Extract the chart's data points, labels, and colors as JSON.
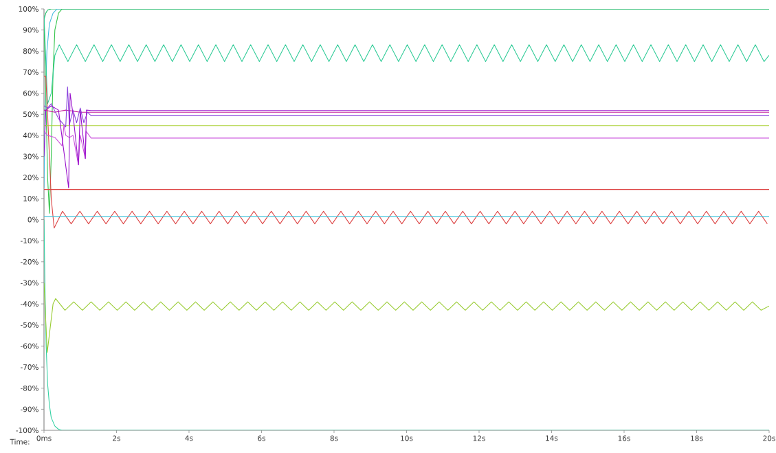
{
  "chart_data": {
    "type": "line",
    "xlabel": "Time:",
    "xlim": [
      0,
      20
    ],
    "ylim": [
      -100,
      100
    ],
    "xticks": [
      {
        "value": 0,
        "label": "0ms"
      },
      {
        "value": 2,
        "label": "2s"
      },
      {
        "value": 4,
        "label": "4s"
      },
      {
        "value": 6,
        "label": "6s"
      },
      {
        "value": 8,
        "label": "8s"
      },
      {
        "value": 10,
        "label": "10s"
      },
      {
        "value": 12,
        "label": "12s"
      },
      {
        "value": 14,
        "label": "14s"
      },
      {
        "value": 16,
        "label": "16s"
      },
      {
        "value": 18,
        "label": "18s"
      },
      {
        "value": 20,
        "label": "20s"
      }
    ],
    "yticks": [
      {
        "value": -100,
        "label": "-100%"
      },
      {
        "value": -90,
        "label": "-90%"
      },
      {
        "value": -80,
        "label": "-80%"
      },
      {
        "value": -70,
        "label": "-70%"
      },
      {
        "value": -60,
        "label": "-60%"
      },
      {
        "value": -50,
        "label": "-50%"
      },
      {
        "value": -40,
        "label": "-40%"
      },
      {
        "value": -30,
        "label": "-30%"
      },
      {
        "value": -20,
        "label": "-20%"
      },
      {
        "value": -10,
        "label": "-10%"
      },
      {
        "value": 0,
        "label": "0%"
      },
      {
        "value": 10,
        "label": "10%"
      },
      {
        "value": 20,
        "label": "20%"
      },
      {
        "value": 30,
        "label": "30%"
      },
      {
        "value": 40,
        "label": "40%"
      },
      {
        "value": 50,
        "label": "50%"
      },
      {
        "value": 60,
        "label": "60%"
      },
      {
        "value": 70,
        "label": "70%"
      },
      {
        "value": 80,
        "label": "80%"
      },
      {
        "value": 90,
        "label": "90%"
      },
      {
        "value": 100,
        "label": "100%"
      }
    ],
    "series": [
      {
        "color": "#33d1a3",
        "x": [
          0,
          0.03,
          0.06,
          0.1,
          0.15,
          0.2,
          0.3,
          0.4,
          0.5,
          20
        ],
        "values": [
          0,
          -35,
          -60,
          -78,
          -88,
          -94,
          -98,
          -99.5,
          -100,
          -100
        ]
      },
      {
        "color": "#22bb66",
        "x": [
          0,
          0.05,
          0.1,
          0.2,
          20
        ],
        "values": [
          95,
          98,
          99.5,
          100,
          100
        ]
      },
      {
        "color": "#44bbe0",
        "x": [
          0,
          0.03,
          0.08,
          0.15,
          0.25,
          0.36,
          20
        ],
        "values": [
          15,
          50,
          80,
          93,
          98,
          100,
          100
        ]
      },
      {
        "color": "#33c44a",
        "x": [
          0,
          0.05,
          0.1,
          0.15,
          0.2,
          0.25,
          0.3,
          0.4,
          0.5,
          20
        ],
        "values": [
          95,
          60,
          20,
          3,
          30,
          70,
          90,
          98,
          100,
          100
        ]
      },
      {
        "color": "#33cc99",
        "x": [
          0,
          0.1,
          0.2,
          0.3,
          0.42,
          0.66,
          0.9,
          1.14,
          1.38,
          1.62,
          1.86,
          2.1,
          2.34,
          2.58,
          2.82,
          3.06,
          3.3,
          3.54,
          3.78,
          4.02,
          4.26,
          4.5,
          4.74,
          4.98,
          5.22,
          5.46,
          5.7,
          5.94,
          6.18,
          6.42,
          6.66,
          6.9,
          7.14,
          7.38,
          7.62,
          7.86,
          8.1,
          8.34,
          8.58,
          8.82,
          9.06,
          9.3,
          9.54,
          9.78,
          10.02,
          10.26,
          10.5,
          10.74,
          10.98,
          11.22,
          11.46,
          11.7,
          11.94,
          12.18,
          12.42,
          12.66,
          12.9,
          13.14,
          13.38,
          13.62,
          13.86,
          14.1,
          14.34,
          14.58,
          14.82,
          15.06,
          15.3,
          15.54,
          15.78,
          16.02,
          16.26,
          16.5,
          16.74,
          16.98,
          17.22,
          17.46,
          17.7,
          17.94,
          18.18,
          18.42,
          18.66,
          18.9,
          19.14,
          19.38,
          19.62,
          19.86,
          20
        ],
        "values": [
          97,
          55,
          60,
          78,
          83,
          75,
          83,
          75,
          83,
          75,
          83,
          75,
          83,
          75,
          83,
          75,
          83,
          75,
          83,
          75,
          83,
          75,
          83,
          75,
          83,
          75,
          83,
          75,
          83,
          75,
          83,
          75,
          83,
          75,
          83,
          75,
          83,
          75,
          83,
          75,
          83,
          75,
          83,
          75,
          83,
          75,
          83,
          75,
          83,
          75,
          83,
          75,
          83,
          75,
          83,
          75,
          83,
          75,
          83,
          75,
          83,
          75,
          83,
          75,
          83,
          75,
          83,
          75,
          83,
          75,
          83,
          75,
          83,
          75,
          83,
          75,
          83,
          75,
          83,
          75,
          83,
          75,
          83,
          75,
          83,
          75,
          78
        ]
      },
      {
        "color": "#dd4444",
        "x": [
          0,
          20
        ],
        "values": [
          14.3,
          14.3
        ]
      },
      {
        "color": "#dd4444",
        "x": [
          0,
          0.05,
          0.1,
          0.2,
          0.28,
          0.51,
          0.75,
          0.99,
          1.23,
          1.47,
          1.71,
          1.95,
          2.19,
          2.43,
          2.67,
          2.91,
          3.15,
          3.39,
          3.63,
          3.87,
          4.11,
          4.35,
          4.59,
          4.83,
          5.07,
          5.31,
          5.55,
          5.79,
          6.03,
          6.27,
          6.51,
          6.75,
          6.99,
          7.23,
          7.47,
          7.71,
          7.95,
          8.19,
          8.43,
          8.67,
          8.91,
          9.15,
          9.39,
          9.63,
          9.87,
          10.11,
          10.35,
          10.59,
          10.83,
          11.07,
          11.31,
          11.55,
          11.79,
          12.03,
          12.27,
          12.51,
          12.75,
          12.99,
          13.23,
          13.47,
          13.71,
          13.95,
          14.19,
          14.43,
          14.67,
          14.91,
          15.15,
          15.39,
          15.63,
          15.87,
          16.11,
          16.35,
          16.59,
          16.83,
          17.07,
          17.31,
          17.55,
          17.79,
          18.03,
          18.27,
          18.51,
          18.75,
          18.99,
          19.23,
          19.47,
          19.71,
          19.95
        ],
        "values": [
          68,
          68,
          50,
          10,
          -4,
          4,
          -2,
          4,
          -2,
          4,
          -2,
          4,
          -2,
          4,
          -2,
          4,
          -2,
          4,
          -2,
          4,
          -2,
          4,
          -2,
          4,
          -2,
          4,
          -2,
          4,
          -2,
          4,
          -2,
          4,
          -2,
          4,
          -2,
          4,
          -2,
          4,
          -2,
          4,
          -2,
          4,
          -2,
          4,
          -2,
          4,
          -2,
          4,
          -2,
          4,
          -2,
          4,
          -2,
          4,
          -2,
          4,
          -2,
          4,
          -2,
          4,
          -2,
          4,
          -2,
          4,
          -2,
          4,
          -2,
          4,
          -2,
          4,
          -2,
          4,
          -2,
          4,
          -2,
          4,
          -2,
          4,
          -2,
          4,
          -2,
          4,
          -2,
          4,
          -2,
          4,
          -2
        ]
      },
      {
        "color": "#44c4dd",
        "x": [
          0,
          20
        ],
        "values": [
          1.5,
          1.5
        ]
      },
      {
        "color": "#99cc33",
        "x": [
          0,
          0.09,
          0.25,
          0.32,
          0.58,
          0.82,
          1.06,
          1.3,
          1.54,
          1.78,
          2.02,
          2.26,
          2.5,
          2.74,
          2.98,
          3.22,
          3.46,
          3.7,
          3.94,
          4.18,
          4.42,
          4.66,
          4.9,
          5.14,
          5.38,
          5.62,
          5.86,
          6.1,
          6.34,
          6.58,
          6.82,
          7.06,
          7.3,
          7.54,
          7.78,
          8.02,
          8.26,
          8.5,
          8.74,
          8.98,
          9.22,
          9.46,
          9.7,
          9.94,
          10.18,
          10.42,
          10.66,
          10.9,
          11.14,
          11.38,
          11.62,
          11.86,
          12.1,
          12.34,
          12.58,
          12.82,
          13.06,
          13.3,
          13.54,
          13.78,
          14.02,
          14.26,
          14.5,
          14.74,
          14.98,
          15.22,
          15.46,
          15.7,
          15.94,
          16.18,
          16.42,
          16.66,
          16.9,
          17.14,
          17.38,
          17.62,
          17.86,
          18.1,
          18.34,
          18.58,
          18.82,
          19.06,
          19.3,
          19.54,
          19.78,
          20
        ],
        "values": [
          -30,
          -63,
          -40,
          -37.5,
          -43,
          -39,
          -43,
          -39,
          -43,
          -39,
          -43,
          -39,
          -43,
          -39,
          -43,
          -39,
          -43,
          -39,
          -43,
          -39,
          -43,
          -39,
          -43,
          -39,
          -43,
          -39,
          -43,
          -39,
          -43,
          -39,
          -43,
          -39,
          -43,
          -39,
          -43,
          -39,
          -43,
          -39,
          -43,
          -39,
          -43,
          -39,
          -43,
          -39,
          -43,
          -39,
          -43,
          -39,
          -43,
          -39,
          -43,
          -39,
          -43,
          -39,
          -43,
          -39,
          -43,
          -39,
          -43,
          -39,
          -43,
          -39,
          -43,
          -39,
          -43,
          -39,
          -43,
          -39,
          -43,
          -39,
          -43,
          -39,
          -43,
          -39,
          -43,
          -39,
          -43,
          -39,
          -43,
          -39,
          -43,
          -39,
          -43,
          -39,
          -43,
          -41
        ]
      },
      {
        "color": "#aad133",
        "x": [
          0,
          20
        ],
        "values": [
          44.6,
          44.6
        ]
      },
      {
        "color": "#c41899",
        "x": [
          0,
          0.3,
          0.6,
          1,
          20
        ],
        "values": [
          52,
          51,
          52,
          51,
          51
        ]
      },
      {
        "color": "#8a44dd",
        "x": [
          0,
          0.1,
          0.2,
          0.4,
          0.6,
          0.65,
          0.7,
          0.8,
          0.9,
          1,
          1.1,
          1.2,
          1.3,
          20
        ],
        "values": [
          54,
          53,
          55,
          48,
          44,
          63,
          45,
          52,
          46,
          53,
          46,
          51,
          49.3,
          49.3
        ]
      },
      {
        "color": "#cc55dd",
        "x": [
          0,
          0.1,
          0.3,
          0.5,
          0.55,
          0.6,
          0.7,
          0.8,
          0.95,
          1,
          1.14,
          1.16,
          1.3,
          20
        ],
        "values": [
          42,
          40,
          39,
          35,
          45,
          40,
          39,
          40,
          26,
          40,
          29,
          42,
          38.7,
          38.7
        ]
      },
      {
        "color": "#9911cc",
        "x": [
          0,
          0.05,
          0.2,
          0.4,
          0.68,
          0.72,
          0.8,
          0.95,
          1,
          1.14,
          1.17,
          1.3,
          20
        ],
        "values": [
          30,
          52,
          54,
          52,
          15,
          60,
          50,
          26,
          52,
          29,
          52,
          51.8,
          51.8
        ]
      }
    ]
  }
}
